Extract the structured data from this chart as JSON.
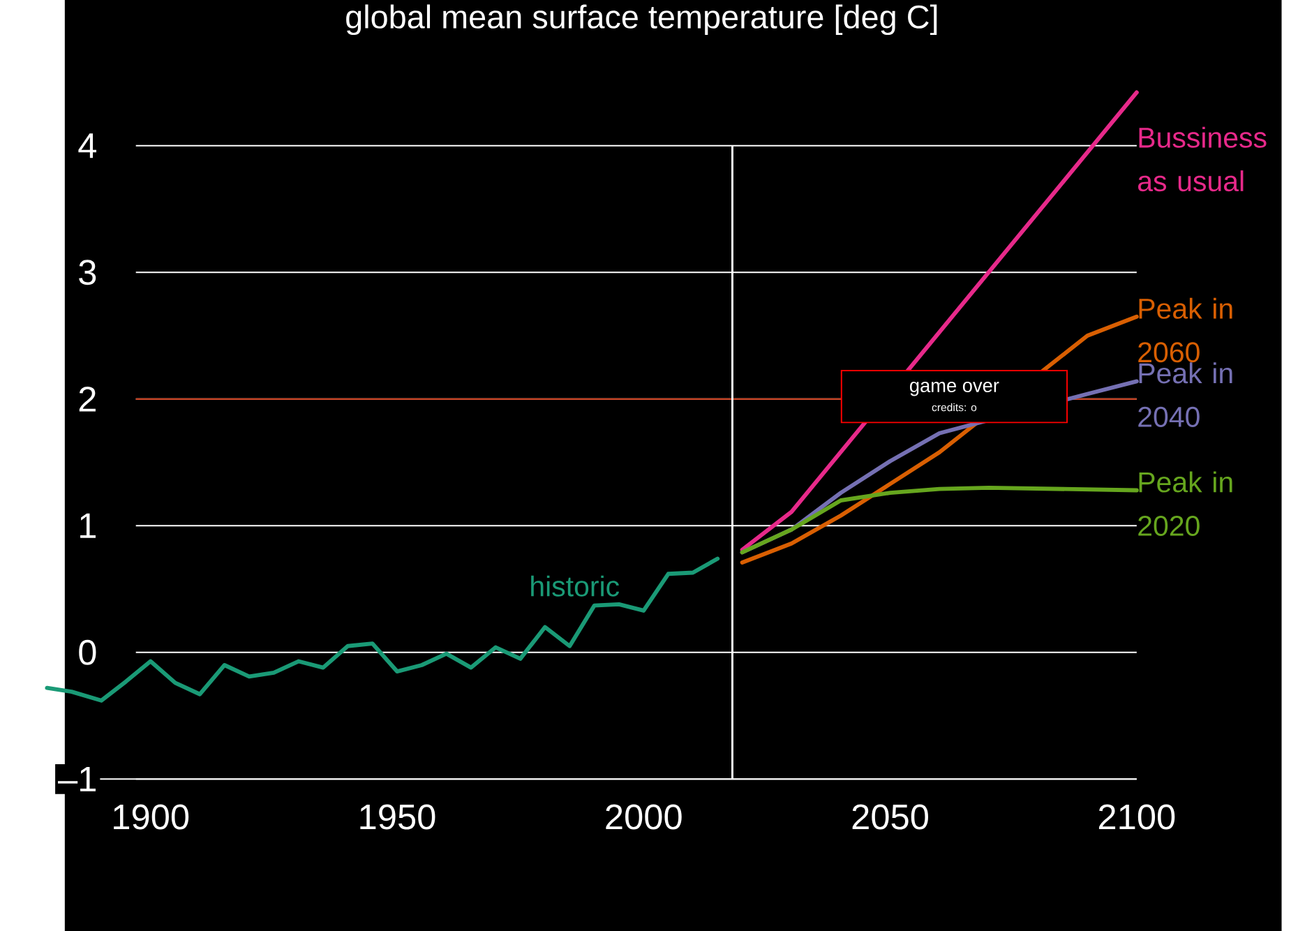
{
  "chart_data": {
    "type": "line",
    "title": "global mean surface temperature [deg C]",
    "xlim": [
      1879,
      2100
    ],
    "ylim": [
      -2.2,
      5.15
    ],
    "xticks": [
      1900,
      1950,
      2000,
      2050,
      2100
    ],
    "yticks": [
      {
        "value": -1,
        "label": "–1"
      },
      0,
      1,
      2,
      3,
      4
    ],
    "grid": "y",
    "series": [
      {
        "name": "historic",
        "color": "#1a9a76",
        "x": [
          1879,
          1884,
          1890,
          1895,
          1900,
          1905,
          1910,
          1915,
          1920,
          1925,
          1930,
          1935,
          1940,
          1945,
          1950,
          1955,
          1960,
          1965,
          1970,
          1975,
          1980,
          1985,
          1990,
          1995,
          2000,
          2005,
          2010,
          2015
        ],
        "values": [
          -0.28,
          -0.31,
          -0.38,
          -0.23,
          -0.07,
          -0.24,
          -0.33,
          -0.1,
          -0.19,
          -0.16,
          -0.07,
          -0.12,
          0.05,
          0.07,
          -0.15,
          -0.1,
          -0.01,
          -0.12,
          0.04,
          -0.05,
          0.2,
          0.05,
          0.37,
          0.38,
          0.33,
          0.62,
          0.63,
          0.74
        ]
      },
      {
        "name": "Bussiness as usual",
        "color": "#e7298a",
        "x": [
          2020,
          2030,
          2100
        ],
        "values": [
          0.81,
          1.11,
          4.42
        ]
      },
      {
        "name": "Peak in 2060",
        "color": "#d95f02",
        "x": [
          2020,
          2030,
          2040,
          2050,
          2060,
          2080,
          2090,
          2100
        ],
        "values": [
          0.71,
          0.86,
          1.08,
          1.33,
          1.58,
          null,
          2.5,
          2.65
        ]
      },
      {
        "name": "Peak in 2040",
        "color": "#7570b3",
        "x": [
          2020,
          2030,
          2040,
          2050,
          2060,
          2090,
          2100
        ],
        "values": [
          0.79,
          0.97,
          1.26,
          1.51,
          1.73,
          2.04,
          2.14
        ]
      },
      {
        "name": "Peak in 2020",
        "color": "#66a61e",
        "x": [
          2020,
          2030,
          2040,
          2050,
          2060,
          2070,
          2100
        ],
        "values": [
          0.79,
          0.97,
          1.2,
          1.26,
          1.29,
          1.3,
          1.28
        ]
      }
    ],
    "ref_lines": [
      {
        "axis": "y",
        "value": 2,
        "color": "#c8300c"
      },
      {
        "axis": "x",
        "value": 2018,
        "color": "#ffffff"
      }
    ],
    "annotations": [
      "game over",
      "credits: o"
    ]
  }
}
